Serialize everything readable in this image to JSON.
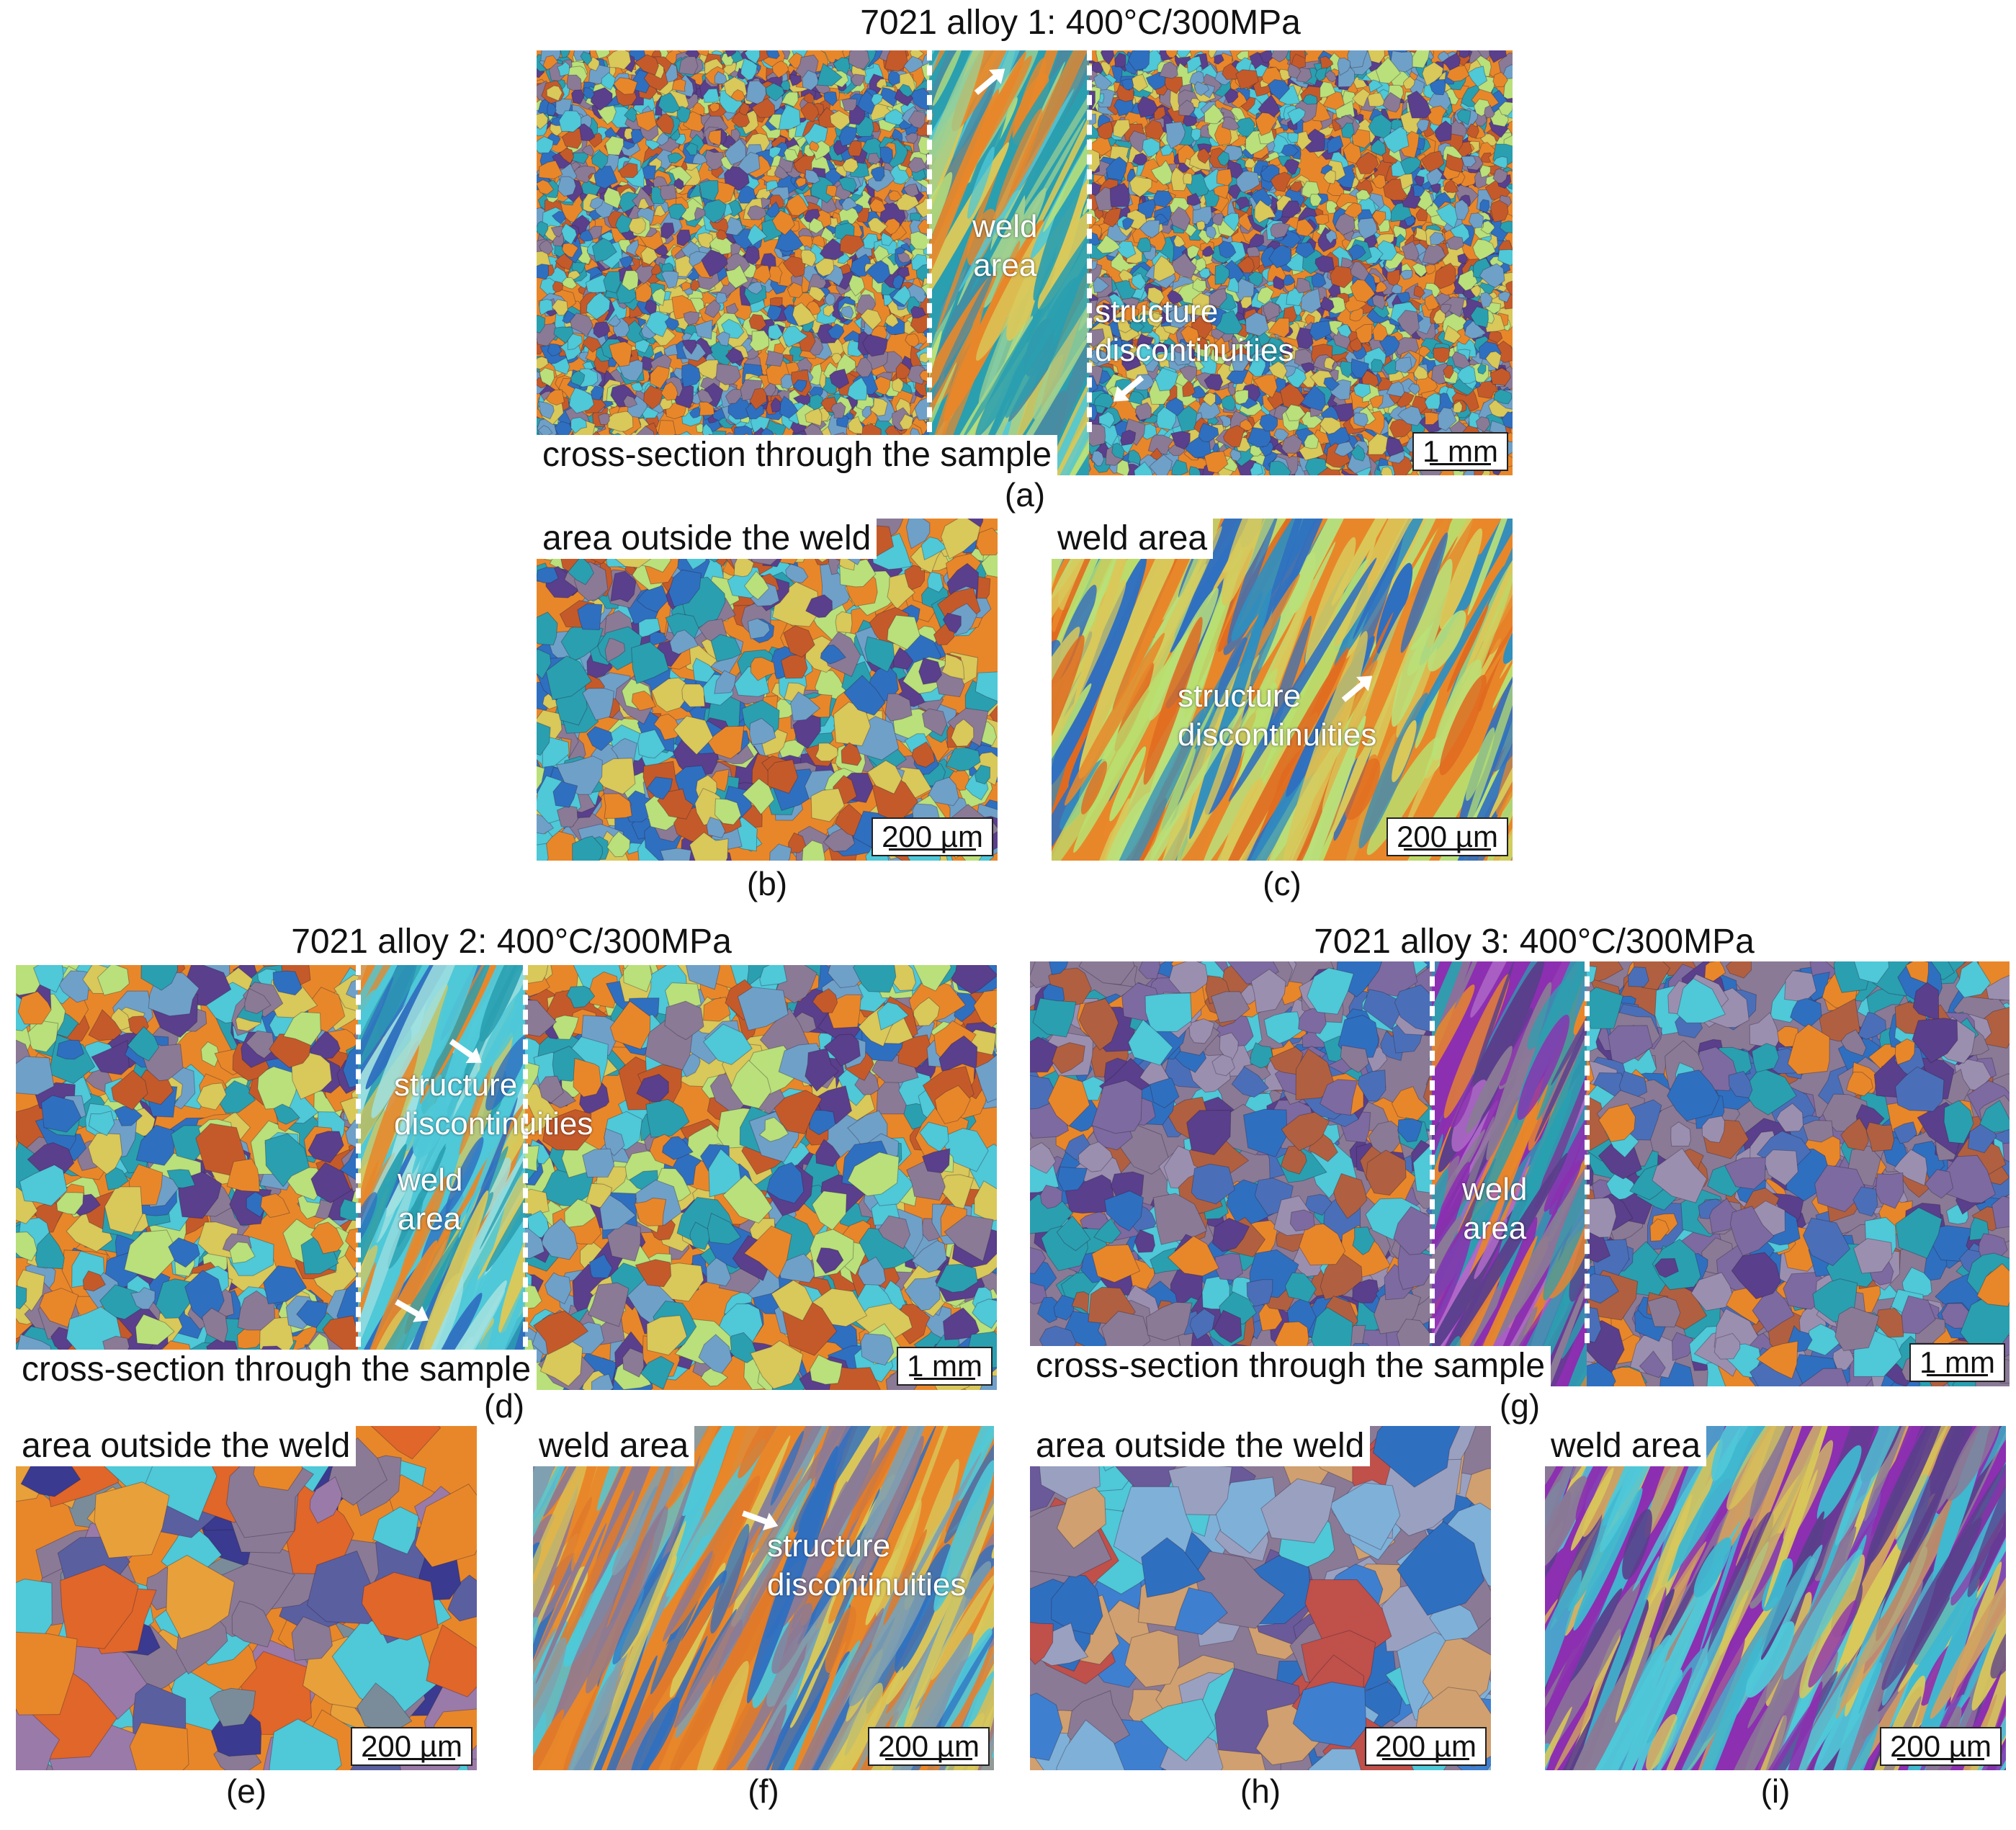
{
  "titles": {
    "alloy1": "7021 alloy 1: 400°C/300MPa",
    "alloy2": "7021 alloy 2: 400°C/300MPa",
    "alloy3": "7021 alloy 3: 400°C/300MPa"
  },
  "labels": {
    "cross_section": "cross-section through the sample",
    "outside_weld": "area outside the weld",
    "weld_area": "weld area",
    "weld": "weld",
    "area": "area",
    "structure": "structure",
    "discontinuities": "discontinuities"
  },
  "scale_bars": {
    "mm": "1 mm",
    "um": "200 µm"
  },
  "captions": [
    "(a)",
    "(b)",
    "(c)",
    "(d)",
    "(e)",
    "(f)",
    "(g)",
    "(h)",
    "(i)"
  ],
  "colors": {
    "orange": "#e8872a",
    "cyan": "#4fc8d8",
    "teal": "#2a9fb0",
    "yellow": "#d9c85a",
    "purple": "#5a3f8c",
    "violet": "#8c2fb0",
    "grey_purple": "#8a7a96",
    "blue": "#2f6fc0",
    "lime": "#b9e07a"
  }
}
